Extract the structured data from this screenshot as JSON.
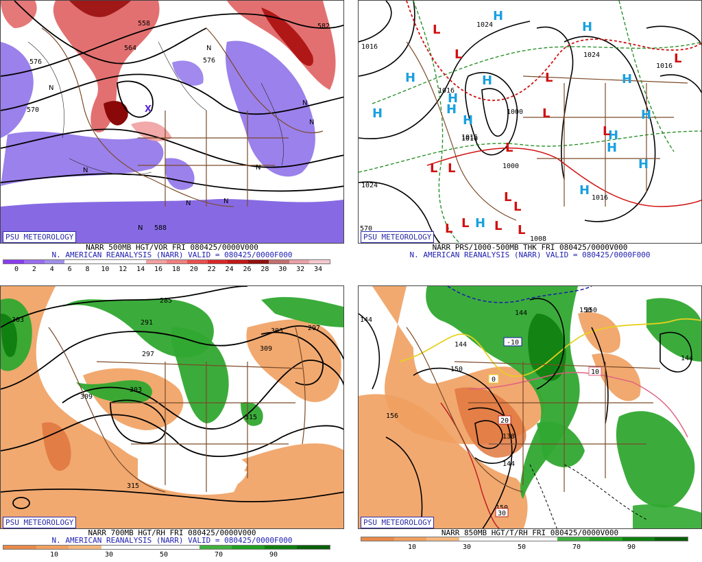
{
  "badge": "PSU METEOROLOGY",
  "panels": [
    {
      "caption1": "NARR 500MB HGT/VOR FRI 080425/0000V000",
      "caption2": "N. AMERICAN REANALYSIS (NARR) VALID = 080425/0000F000",
      "colorbar": [
        "#8a3cf0",
        "#9a6cf0",
        "#a090e8",
        "#ffffff",
        "#ffffff",
        "#ffffff",
        "#ffffff",
        "#f4a0a0",
        "#f08080",
        "#e85050",
        "#d82828",
        "#c01818",
        "#901010",
        "#c07070",
        "#e8a0a8",
        "#f4c8d0"
      ],
      "ticks": [
        "0",
        "2",
        "4",
        "6",
        "8",
        "10",
        "12",
        "14",
        "16",
        "18",
        "20",
        "22",
        "24",
        "26",
        "28",
        "30",
        "32",
        "34"
      ],
      "labels": [
        "576",
        "570",
        "564",
        "558",
        "582",
        "576",
        "588",
        "582",
        "564",
        "576"
      ]
    },
    {
      "caption1": "NARR PRS/1000-500MB THK FRI 080425/0000V000",
      "caption2": "N. AMERICAN REANALYSIS (NARR) VALID = 080425/0000F000",
      "labels": [
        "1016",
        "1024",
        "1024",
        "1016",
        "1000",
        "1000",
        "1016",
        "1024",
        "1016",
        "1008",
        "1016",
        "1016",
        "570"
      ]
    },
    {
      "caption1": "NARR 700MB HGT/RH FRI 080425/0000V000",
      "caption2": "N. AMERICAN REANALYSIS (NARR) VALID = 080425/0000F000",
      "colorbar": [
        "#e88a4a",
        "#f0a060",
        "#f4b880",
        "#ffffff",
        "#ffffff",
        "#ffffff",
        "#40b040",
        "#20a020",
        "#108010",
        "#086008"
      ],
      "ticks": [
        "10",
        "30",
        "50",
        "70",
        "90"
      ],
      "labels": [
        "285",
        "291",
        "303",
        "297",
        "303",
        "309",
        "309",
        "315",
        "303",
        "297",
        "315",
        "303"
      ]
    },
    {
      "caption1": "NARR 850MB HGT/T/RH FRI 080425/0000V000",
      "colorbar": [
        "#e88a4a",
        "#f0a060",
        "#f4b880",
        "#ffffff",
        "#ffffff",
        "#ffffff",
        "#40b040",
        "#20a020",
        "#108010",
        "#086008"
      ],
      "ticks": [
        "10",
        "30",
        "50",
        "70",
        "90"
      ],
      "labels": [
        "144",
        "144",
        "150",
        "144",
        "156",
        "150",
        "138",
        "144",
        "150",
        "144",
        "-10",
        "10",
        "0",
        "20",
        "30",
        "150"
      ]
    }
  ]
}
